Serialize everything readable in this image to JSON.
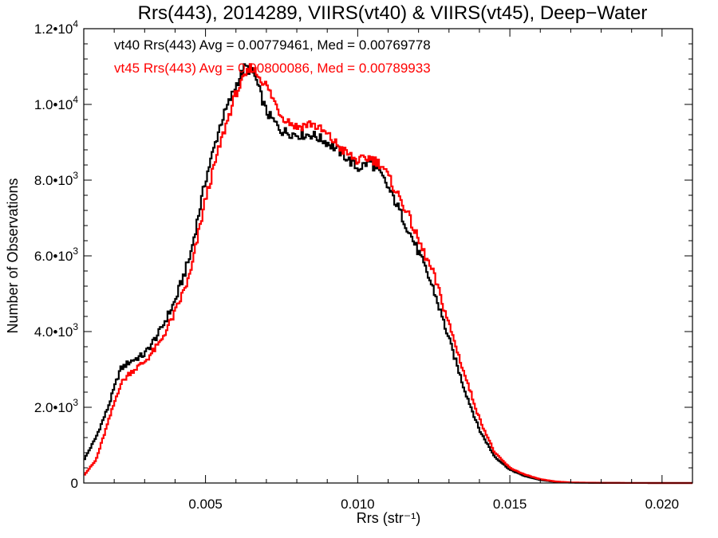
{
  "chart_data": {
    "type": "line",
    "title": "Rrs(443), 2014289, VIIRS(vt40) & VIIRS(vt45), Deep−Water",
    "xlabel": "Rrs (str⁻¹)",
    "ylabel": "Number of Observations",
    "xlim": [
      0.001,
      0.021
    ],
    "ylim": [
      0,
      12000
    ],
    "x_ticks": [
      {
        "value": 0.005,
        "label": "0.005"
      },
      {
        "value": 0.01,
        "label": "0.010"
      },
      {
        "value": 0.015,
        "label": "0.015"
      },
      {
        "value": 0.02,
        "label": "0.020"
      }
    ],
    "y_ticks": [
      {
        "value": 0,
        "label": "0",
        "sup": ""
      },
      {
        "value": 2000,
        "label": "2.0•10",
        "sup": "3"
      },
      {
        "value": 4000,
        "label": "4.0•10",
        "sup": "3"
      },
      {
        "value": 6000,
        "label": "6.0•10",
        "sup": "3"
      },
      {
        "value": 8000,
        "label": "8.0•10",
        "sup": "3"
      },
      {
        "value": 10000,
        "label": "1.0•10",
        "sup": "4"
      },
      {
        "value": 12000,
        "label": "1.2•10",
        "sup": "4"
      }
    ],
    "annotations": [
      {
        "text": "vt40 Rrs(443) Avg = 0.00779461, Med = 0.00769778",
        "color": "#000000"
      },
      {
        "text": "vt45 Rrs(443) Avg = 0.00800086, Med = 0.00789933",
        "color": "#ff0000"
      }
    ],
    "series": [
      {
        "color": "#000000",
        "points": [
          [
            0.001,
            600
          ],
          [
            0.0014,
            1200
          ],
          [
            0.0018,
            2000
          ],
          [
            0.0022,
            3000
          ],
          [
            0.0025,
            3200
          ],
          [
            0.003,
            3400
          ],
          [
            0.0035,
            4000
          ],
          [
            0.004,
            4800
          ],
          [
            0.0045,
            6000
          ],
          [
            0.005,
            8000
          ],
          [
            0.0055,
            9500
          ],
          [
            0.006,
            10500
          ],
          [
            0.0063,
            11000
          ],
          [
            0.0066,
            10800
          ],
          [
            0.007,
            9800
          ],
          [
            0.0075,
            9300
          ],
          [
            0.008,
            9200
          ],
          [
            0.0085,
            9200
          ],
          [
            0.009,
            9000
          ],
          [
            0.0095,
            8700
          ],
          [
            0.01,
            8300
          ],
          [
            0.0104,
            8500
          ],
          [
            0.0108,
            8100
          ],
          [
            0.0112,
            7500
          ],
          [
            0.0116,
            6800
          ],
          [
            0.012,
            6100
          ],
          [
            0.0125,
            5100
          ],
          [
            0.013,
            3800
          ],
          [
            0.0135,
            2500
          ],
          [
            0.014,
            1400
          ],
          [
            0.0145,
            700
          ],
          [
            0.015,
            350
          ],
          [
            0.0155,
            180
          ],
          [
            0.016,
            80
          ],
          [
            0.0165,
            30
          ],
          [
            0.017,
            10
          ],
          [
            0.018,
            3
          ],
          [
            0.019,
            1
          ],
          [
            0.021,
            0
          ]
        ]
      },
      {
        "color": "#ff0000",
        "points": [
          [
            0.001,
            200
          ],
          [
            0.0014,
            600
          ],
          [
            0.0018,
            1600
          ],
          [
            0.0022,
            2600
          ],
          [
            0.0025,
            2900
          ],
          [
            0.003,
            3200
          ],
          [
            0.0035,
            3700
          ],
          [
            0.004,
            4500
          ],
          [
            0.0045,
            5500
          ],
          [
            0.005,
            7500
          ],
          [
            0.0055,
            9000
          ],
          [
            0.006,
            10300
          ],
          [
            0.0065,
            11000
          ],
          [
            0.007,
            10500
          ],
          [
            0.0075,
            9700
          ],
          [
            0.008,
            9400
          ],
          [
            0.0085,
            9500
          ],
          [
            0.009,
            9200
          ],
          [
            0.0095,
            8800
          ],
          [
            0.01,
            8500
          ],
          [
            0.0104,
            8600
          ],
          [
            0.0108,
            8400
          ],
          [
            0.0112,
            7800
          ],
          [
            0.0116,
            7200
          ],
          [
            0.012,
            6400
          ],
          [
            0.0125,
            5500
          ],
          [
            0.013,
            4200
          ],
          [
            0.0135,
            2900
          ],
          [
            0.014,
            1700
          ],
          [
            0.0145,
            800
          ],
          [
            0.015,
            400
          ],
          [
            0.0155,
            220
          ],
          [
            0.016,
            100
          ],
          [
            0.0165,
            40
          ],
          [
            0.017,
            15
          ],
          [
            0.018,
            4
          ],
          [
            0.019,
            1
          ],
          [
            0.021,
            0
          ]
        ]
      }
    ]
  }
}
